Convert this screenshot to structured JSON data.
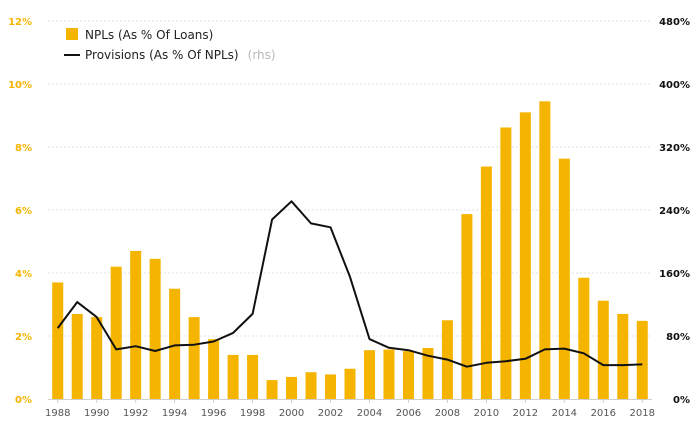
{
  "chart_data": {
    "type": "bar",
    "categories": [
      "1988",
      "1989",
      "1990",
      "1991",
      "1992",
      "1993",
      "1994",
      "1995",
      "1996",
      "1997",
      "1998",
      "1999",
      "2000",
      "2001",
      "2002",
      "2003",
      "2004",
      "2005",
      "2006",
      "2007",
      "2008",
      "2009",
      "2010",
      "2011",
      "2012",
      "2013",
      "2014",
      "2015",
      "2016",
      "2017",
      "2018"
    ],
    "x_tick_labels": [
      "1988",
      "1990",
      "1992",
      "1994",
      "1996",
      "1998",
      "2000",
      "2002",
      "2004",
      "2006",
      "2008",
      "2010",
      "2012",
      "2014",
      "2016",
      "2018"
    ],
    "series": [
      {
        "name": "NPLs (As % Of Loans)",
        "axis": "left",
        "type": "bar",
        "color": "#f5b400",
        "values": [
          3.7,
          2.7,
          2.6,
          4.2,
          4.7,
          4.45,
          3.5,
          2.6,
          1.9,
          1.4,
          1.4,
          0.6,
          0.7,
          0.85,
          0.78,
          0.96,
          1.55,
          1.57,
          1.52,
          1.62,
          2.5,
          5.87,
          7.38,
          8.62,
          9.1,
          9.45,
          7.63,
          3.85,
          3.12,
          2.7,
          2.48
        ]
      },
      {
        "name": "Provisions (As % Of NPLs)",
        "name_suffix": "(rhs)",
        "axis": "right",
        "type": "line",
        "color": "#111111",
        "values": [
          90,
          123,
          104,
          63,
          67,
          61,
          68,
          69,
          73,
          84,
          108,
          228,
          251,
          223,
          218,
          155,
          76,
          65,
          62,
          55,
          50,
          41,
          46,
          48,
          51,
          63,
          64,
          58,
          43,
          43,
          44
        ]
      }
    ],
    "y_left": {
      "min": 0,
      "max": 12,
      "step": 2,
      "tick_labels": [
        "0%",
        "2%",
        "4%",
        "6%",
        "8%",
        "10%",
        "12%"
      ],
      "color": "#f5b400"
    },
    "y_right": {
      "min": 0,
      "max": 480,
      "step": 80,
      "tick_labels": [
        "0%",
        "80%",
        "160%",
        "240%",
        "320%",
        "400%",
        "480%"
      ],
      "color": "#111111"
    },
    "grid": true,
    "legend_position": "top-left"
  }
}
